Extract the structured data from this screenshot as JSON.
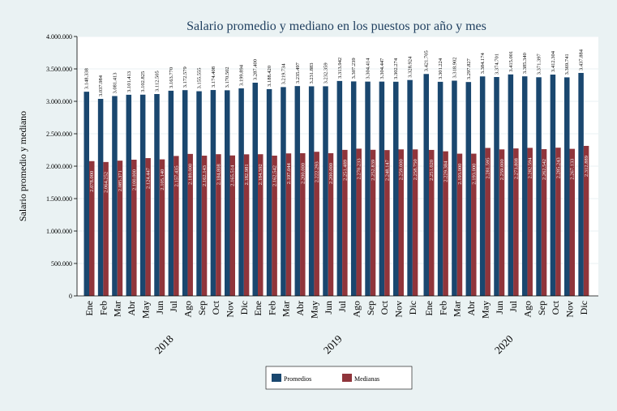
{
  "chart_data": {
    "type": "bar",
    "title": "Salario promedio y mediano en los puestos por año y mes",
    "ylabel": "Salario promedio y mediano",
    "xlabel": "",
    "ylim": [
      0,
      4000000
    ],
    "yticks": [
      "0",
      "500.000",
      "1.000.000",
      "1.500.000",
      "2.000.000",
      "2.500.000",
      "3.000.000",
      "3.500.000",
      "4.000.000"
    ],
    "ytick_values": [
      0,
      500000,
      1000000,
      1500000,
      2000000,
      2500000,
      3000000,
      3500000,
      4000000
    ],
    "grid": true,
    "legend_position": "bottom",
    "colors": {
      "Promedios": "#1a476f",
      "Medianas": "#90353b",
      "background": "#eaf2f3"
    },
    "groups": [
      {
        "year": "2018",
        "months": [
          "Ene",
          "Feb",
          "Mar",
          "Abr",
          "May",
          "Jun",
          "Jul",
          "Ago",
          "Sep",
          "Oct",
          "Nov",
          "Dic"
        ],
        "promedios": [
          3148338,
          3037984,
          3081413,
          3101413,
          3102825,
          3112505,
          3163770,
          3172579,
          3155555,
          3174408,
          3170502,
          3199894
        ],
        "promedios_labels": [
          "3.148.338",
          "3.037.984",
          "3.081.413",
          "3.101.413",
          "3.102.825",
          "3.112.505",
          "3.163.770",
          "3.172.579",
          "3.155.555",
          "3.174.408",
          "3.170.502",
          "3.199.894"
        ],
        "medianas": [
          2078000,
          2064252,
          2085371,
          2100000,
          2124447,
          2105140,
          2157435,
          2189000,
          2162143,
          2184808,
          2165514,
          2182981
        ],
        "medianas_labels": [
          "2.078.000",
          "2.064.252",
          "2.085.371",
          "2.100.000",
          "2.124.447",
          "2.105.140",
          "2.157.435",
          "2.189.000",
          "2.162.143",
          "2.184.808",
          "2.165.514",
          "2.182.981"
        ]
      },
      {
        "year": "2019",
        "months": [
          "Ene",
          "Feb",
          "Mar",
          "Abr",
          "May",
          "Jun",
          "Jul",
          "Ago",
          "Sep",
          "Oct",
          "Nov",
          "Dic"
        ],
        "promedios": [
          3287400,
          3188420,
          3219734,
          3235497,
          3231883,
          3232359,
          3313942,
          3307239,
          3304414,
          3304447,
          3302274,
          3328924
        ],
        "promedios_labels": [
          "3.287.400",
          "3.188.420",
          "3.219.734",
          "3.235.497",
          "3.231.883",
          "3.232.359",
          "3.313.942",
          "3.307.239",
          "3.304.414",
          "3.304.447",
          "3.302.274",
          "3.328.924"
        ],
        "medianas": [
          2184592,
          2162542,
          2197044,
          2200000,
          2222293,
          2200000,
          2251489,
          2270233,
          2252839,
          2248147,
          2259000,
          2258750
        ],
        "medianas_labels": [
          "2.184.592",
          "2.162.542",
          "2.197.044",
          "2.200.000",
          "2.222.293",
          "2.200.000",
          "2.251.489",
          "2.270.233",
          "2.252.839",
          "2.248.147",
          "2.259.000",
          "2.258.750"
        ]
      },
      {
        "year": "2020",
        "months": [
          "Ene",
          "Feb",
          "Mar",
          "Abr",
          "May",
          "Jun",
          "Jul",
          "Ago",
          "Sep",
          "Oct",
          "Nov",
          "Dic"
        ],
        "promedios": [
          3421705,
          3301224,
          3318902,
          3297827,
          3384174,
          3374701,
          3415001,
          3385340,
          3371397,
          3412304,
          3369741,
          3437884
        ],
        "promedios_labels": [
          "3.421.705",
          "3.301.224",
          "3.318.902",
          "3.297.827",
          "3.384.174",
          "3.374.701",
          "3.415.001",
          "3.385.340",
          "3.371.397",
          "3.412.304",
          "3.369.741",
          "3.437.884"
        ],
        "medianas": [
          2251020,
          2229384,
          2193000,
          2193000,
          2281595,
          2259000,
          2273808,
          2282594,
          2262542,
          2285243,
          2267133,
          2312889
        ],
        "medianas_labels": [
          "2.251.020",
          "2.229.384",
          "2.193.000",
          "2.193.000",
          "2.281.595",
          "2.259.000",
          "2.273.808",
          "2.282.594",
          "2.262.542",
          "2.285.243",
          "2.267.133",
          "2.312.889"
        ]
      }
    ],
    "legend": [
      "Promedios",
      "Medianas"
    ]
  }
}
